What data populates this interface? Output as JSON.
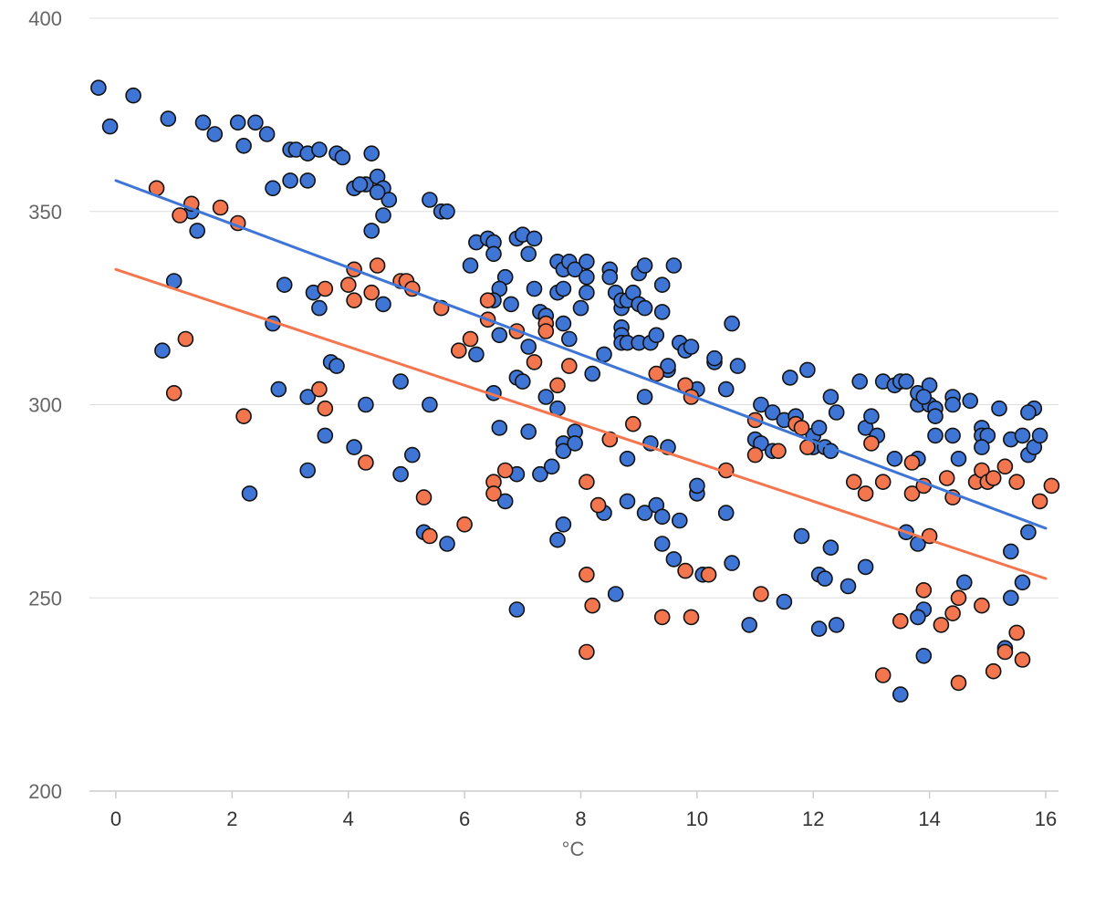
{
  "colors": {
    "series_a": "#3f76d6",
    "series_b": "#f4764f",
    "gridline": "#dddddd",
    "axis_line": "#cccccc",
    "marker_stroke": "#111111"
  },
  "chart_data": {
    "type": "scatter",
    "title": "",
    "xlabel": "°C",
    "ylabel": "",
    "xlim": [
      -0.4,
      16.4
    ],
    "ylim": [
      200,
      400
    ],
    "x_ticks": [
      0,
      2,
      4,
      6,
      8,
      10,
      12,
      14,
      16
    ],
    "y_ticks": [
      200,
      250,
      300,
      350,
      400
    ],
    "grid": "horizontal",
    "legend": "none",
    "series": [
      {
        "color": "#3f76d6",
        "trendline": {
          "x": [
            0,
            16
          ],
          "y": [
            358,
            268
          ]
        },
        "points": [
          [
            -0.3,
            382
          ],
          [
            -0.1,
            372
          ],
          [
            0.3,
            380
          ],
          [
            0.9,
            374
          ],
          [
            1.3,
            350
          ],
          [
            1.5,
            373
          ],
          [
            1.7,
            370
          ],
          [
            2.1,
            373
          ],
          [
            2.2,
            367
          ],
          [
            2.4,
            373
          ],
          [
            2.6,
            370
          ],
          [
            2.7,
            356
          ],
          [
            3.0,
            366
          ],
          [
            3.1,
            366
          ],
          [
            3.3,
            365
          ],
          [
            3.5,
            366
          ],
          [
            3.8,
            365
          ],
          [
            3.9,
            364
          ],
          [
            4.1,
            356
          ],
          [
            4.3,
            357
          ],
          [
            4.4,
            365
          ],
          [
            4.5,
            359
          ],
          [
            4.6,
            356
          ],
          [
            4.7,
            353
          ],
          [
            4.2,
            357
          ],
          [
            4.5,
            355
          ],
          [
            4.6,
            349
          ],
          [
            4.4,
            345
          ],
          [
            5.4,
            353
          ],
          [
            5.6,
            350
          ],
          [
            5.7,
            350
          ],
          [
            1.0,
            332
          ],
          [
            1.4,
            345
          ],
          [
            2.9,
            331
          ],
          [
            3.4,
            329
          ],
          [
            3.5,
            325
          ],
          [
            2.7,
            321
          ],
          [
            0.8,
            314
          ],
          [
            3.0,
            358
          ],
          [
            3.3,
            358
          ],
          [
            4.6,
            326
          ],
          [
            2.8,
            304
          ],
          [
            3.3,
            302
          ],
          [
            3.7,
            311
          ],
          [
            3.8,
            310
          ],
          [
            4.3,
            300
          ],
          [
            3.6,
            292
          ],
          [
            4.1,
            289
          ],
          [
            4.9,
            306
          ],
          [
            5.1,
            287
          ],
          [
            5.4,
            300
          ],
          [
            4.9,
            282
          ],
          [
            3.3,
            283
          ],
          [
            2.3,
            277
          ],
          [
            5.3,
            267
          ],
          [
            5.7,
            264
          ],
          [
            6.1,
            336
          ],
          [
            6.2,
            342
          ],
          [
            6.4,
            343
          ],
          [
            6.5,
            342
          ],
          [
            6.5,
            339
          ],
          [
            6.7,
            333
          ],
          [
            6.6,
            330
          ],
          [
            6.5,
            327
          ],
          [
            6.8,
            326
          ],
          [
            6.9,
            343
          ],
          [
            7.0,
            344
          ],
          [
            7.1,
            339
          ],
          [
            7.2,
            343
          ],
          [
            7.2,
            330
          ],
          [
            6.6,
            318
          ],
          [
            7.1,
            315
          ],
          [
            7.3,
            324
          ],
          [
            7.4,
            323
          ],
          [
            7.6,
            337
          ],
          [
            7.7,
            335
          ],
          [
            7.6,
            329
          ],
          [
            7.7,
            330
          ],
          [
            7.8,
            337
          ],
          [
            7.9,
            335
          ],
          [
            8.0,
            325
          ],
          [
            8.1,
            337
          ],
          [
            8.1,
            333
          ],
          [
            8.1,
            329
          ],
          [
            7.7,
            321
          ],
          [
            7.8,
            317
          ],
          [
            6.2,
            313
          ],
          [
            6.9,
            307
          ],
          [
            7.0,
            306
          ],
          [
            7.4,
            302
          ],
          [
            7.6,
            299
          ],
          [
            6.6,
            294
          ],
          [
            7.1,
            293
          ],
          [
            6.5,
            303
          ],
          [
            7.3,
            282
          ],
          [
            6.9,
            282
          ],
          [
            6.7,
            275
          ],
          [
            6.9,
            247
          ],
          [
            7.7,
            290
          ],
          [
            7.7,
            288
          ],
          [
            7.5,
            284
          ],
          [
            7.9,
            293
          ],
          [
            7.9,
            290
          ],
          [
            8.2,
            308
          ],
          [
            8.4,
            313
          ],
          [
            8.5,
            335
          ],
          [
            8.5,
            333
          ],
          [
            8.6,
            329
          ],
          [
            8.7,
            325
          ],
          [
            8.7,
            327
          ],
          [
            8.8,
            327
          ],
          [
            8.9,
            329
          ],
          [
            9.0,
            326
          ],
          [
            9.0,
            334
          ],
          [
            9.1,
            336
          ],
          [
            9.1,
            325
          ],
          [
            9.4,
            331
          ],
          [
            9.4,
            324
          ],
          [
            8.7,
            320
          ],
          [
            8.7,
            318
          ],
          [
            8.7,
            316
          ],
          [
            8.8,
            316
          ],
          [
            9.0,
            316
          ],
          [
            9.2,
            316
          ],
          [
            9.3,
            318
          ],
          [
            9.5,
            309
          ],
          [
            9.5,
            310
          ],
          [
            9.6,
            336
          ],
          [
            9.7,
            316
          ],
          [
            9.8,
            314
          ],
          [
            9.9,
            315
          ],
          [
            9.8,
            305
          ],
          [
            10.0,
            304
          ],
          [
            9.1,
            302
          ],
          [
            9.2,
            290
          ],
          [
            9.5,
            289
          ],
          [
            8.4,
            272
          ],
          [
            8.8,
            286
          ],
          [
            8.8,
            275
          ],
          [
            9.1,
            272
          ],
          [
            9.3,
            274
          ],
          [
            9.4,
            271
          ],
          [
            9.4,
            264
          ],
          [
            9.6,
            260
          ],
          [
            9.7,
            270
          ],
          [
            7.7,
            269
          ],
          [
            7.6,
            265
          ],
          [
            8.6,
            251
          ],
          [
            10.0,
            277
          ],
          [
            10.0,
            279
          ],
          [
            10.1,
            256
          ],
          [
            10.3,
            311
          ],
          [
            10.3,
            312
          ],
          [
            10.5,
            304
          ],
          [
            10.6,
            321
          ],
          [
            10.7,
            310
          ],
          [
            11.0,
            291
          ],
          [
            11.1,
            290
          ],
          [
            11.1,
            300
          ],
          [
            11.3,
            298
          ],
          [
            11.5,
            296
          ],
          [
            11.6,
            307
          ],
          [
            11.7,
            297
          ],
          [
            11.9,
            309
          ],
          [
            12.0,
            292
          ],
          [
            12.0,
            289
          ],
          [
            12.1,
            294
          ],
          [
            12.2,
            289
          ],
          [
            12.3,
            302
          ],
          [
            12.3,
            288
          ],
          [
            12.4,
            298
          ],
          [
            12.8,
            306
          ],
          [
            12.9,
            294
          ],
          [
            13.0,
            297
          ],
          [
            13.1,
            292
          ],
          [
            13.2,
            306
          ],
          [
            13.4,
            305
          ],
          [
            13.5,
            306
          ],
          [
            13.6,
            306
          ],
          [
            13.8,
            300
          ],
          [
            13.8,
            303
          ],
          [
            14.0,
            305
          ],
          [
            14.0,
            300
          ],
          [
            14.1,
            299
          ],
          [
            14.1,
            297
          ],
          [
            13.9,
            302
          ],
          [
            14.4,
            302
          ],
          [
            14.4,
            300
          ],
          [
            14.7,
            301
          ],
          [
            14.1,
            292
          ],
          [
            14.4,
            292
          ],
          [
            14.5,
            286
          ],
          [
            14.9,
            294
          ],
          [
            14.9,
            292
          ],
          [
            15.0,
            292
          ],
          [
            14.9,
            289
          ],
          [
            15.2,
            299
          ],
          [
            15.4,
            291
          ],
          [
            15.6,
            292
          ],
          [
            15.7,
            287
          ],
          [
            15.8,
            299
          ],
          [
            15.8,
            289
          ],
          [
            15.9,
            292
          ],
          [
            15.7,
            298
          ],
          [
            10.5,
            272
          ],
          [
            10.6,
            259
          ],
          [
            11.3,
            288
          ],
          [
            10.9,
            243
          ],
          [
            11.5,
            249
          ],
          [
            11.8,
            266
          ],
          [
            12.1,
            256
          ],
          [
            12.2,
            255
          ],
          [
            12.3,
            263
          ],
          [
            12.1,
            242
          ],
          [
            12.4,
            243
          ],
          [
            12.6,
            253
          ],
          [
            12.9,
            258
          ],
          [
            13.4,
            286
          ],
          [
            13.6,
            267
          ],
          [
            13.8,
            286
          ],
          [
            13.8,
            264
          ],
          [
            13.9,
            247
          ],
          [
            13.8,
            245
          ],
          [
            13.9,
            235
          ],
          [
            13.5,
            225
          ],
          [
            14.6,
            254
          ],
          [
            15.3,
            237
          ],
          [
            15.4,
            262
          ],
          [
            15.4,
            250
          ],
          [
            15.6,
            254
          ],
          [
            15.7,
            267
          ]
        ]
      },
      {
        "color": "#f4764f",
        "trendline": {
          "x": [
            0,
            16
          ],
          "y": [
            335,
            255
          ]
        },
        "points": [
          [
            0.7,
            356
          ],
          [
            1.1,
            349
          ],
          [
            1.3,
            352
          ],
          [
            1.8,
            351
          ],
          [
            2.1,
            347
          ],
          [
            1.2,
            317
          ],
          [
            1.0,
            303
          ],
          [
            2.2,
            297
          ],
          [
            3.6,
            330
          ],
          [
            3.5,
            304
          ],
          [
            3.6,
            299
          ],
          [
            4.0,
            331
          ],
          [
            4.1,
            335
          ],
          [
            4.1,
            327
          ],
          [
            4.4,
            329
          ],
          [
            4.5,
            336
          ],
          [
            4.9,
            332
          ],
          [
            5.0,
            332
          ],
          [
            5.1,
            330
          ],
          [
            5.6,
            325
          ],
          [
            5.3,
            276
          ],
          [
            5.4,
            266
          ],
          [
            4.3,
            285
          ],
          [
            6.1,
            317
          ],
          [
            5.9,
            314
          ],
          [
            6.0,
            269
          ],
          [
            6.4,
            327
          ],
          [
            6.4,
            322
          ],
          [
            6.9,
            319
          ],
          [
            7.4,
            321
          ],
          [
            7.4,
            319
          ],
          [
            7.2,
            311
          ],
          [
            7.6,
            305
          ],
          [
            7.8,
            310
          ],
          [
            6.5,
            280
          ],
          [
            6.5,
            277
          ],
          [
            6.7,
            283
          ],
          [
            8.1,
            280
          ],
          [
            8.3,
            274
          ],
          [
            8.5,
            291
          ],
          [
            8.9,
            295
          ],
          [
            8.1,
            256
          ],
          [
            8.2,
            248
          ],
          [
            8.1,
            236
          ],
          [
            9.3,
            308
          ],
          [
            9.8,
            305
          ],
          [
            9.9,
            302
          ],
          [
            9.4,
            245
          ],
          [
            9.8,
            257
          ],
          [
            9.9,
            245
          ],
          [
            10.2,
            256
          ],
          [
            10.5,
            283
          ],
          [
            11.0,
            296
          ],
          [
            11.0,
            287
          ],
          [
            11.1,
            251
          ],
          [
            11.4,
            288
          ],
          [
            11.7,
            295
          ],
          [
            11.8,
            294
          ],
          [
            11.9,
            289
          ],
          [
            12.7,
            280
          ],
          [
            12.9,
            277
          ],
          [
            13.0,
            290
          ],
          [
            13.2,
            280
          ],
          [
            13.2,
            230
          ],
          [
            13.5,
            244
          ],
          [
            13.7,
            285
          ],
          [
            13.7,
            277
          ],
          [
            13.9,
            279
          ],
          [
            13.9,
            252
          ],
          [
            14.0,
            266
          ],
          [
            14.2,
            243
          ],
          [
            14.3,
            281
          ],
          [
            14.4,
            276
          ],
          [
            14.4,
            246
          ],
          [
            14.5,
            250
          ],
          [
            14.5,
            228
          ],
          [
            14.8,
            280
          ],
          [
            14.9,
            283
          ],
          [
            15.0,
            280
          ],
          [
            15.1,
            281
          ],
          [
            14.9,
            248
          ],
          [
            15.1,
            231
          ],
          [
            15.3,
            236
          ],
          [
            15.3,
            284
          ],
          [
            15.5,
            280
          ],
          [
            15.5,
            241
          ],
          [
            15.6,
            234
          ],
          [
            15.9,
            275
          ],
          [
            16.1,
            279
          ]
        ]
      }
    ]
  }
}
